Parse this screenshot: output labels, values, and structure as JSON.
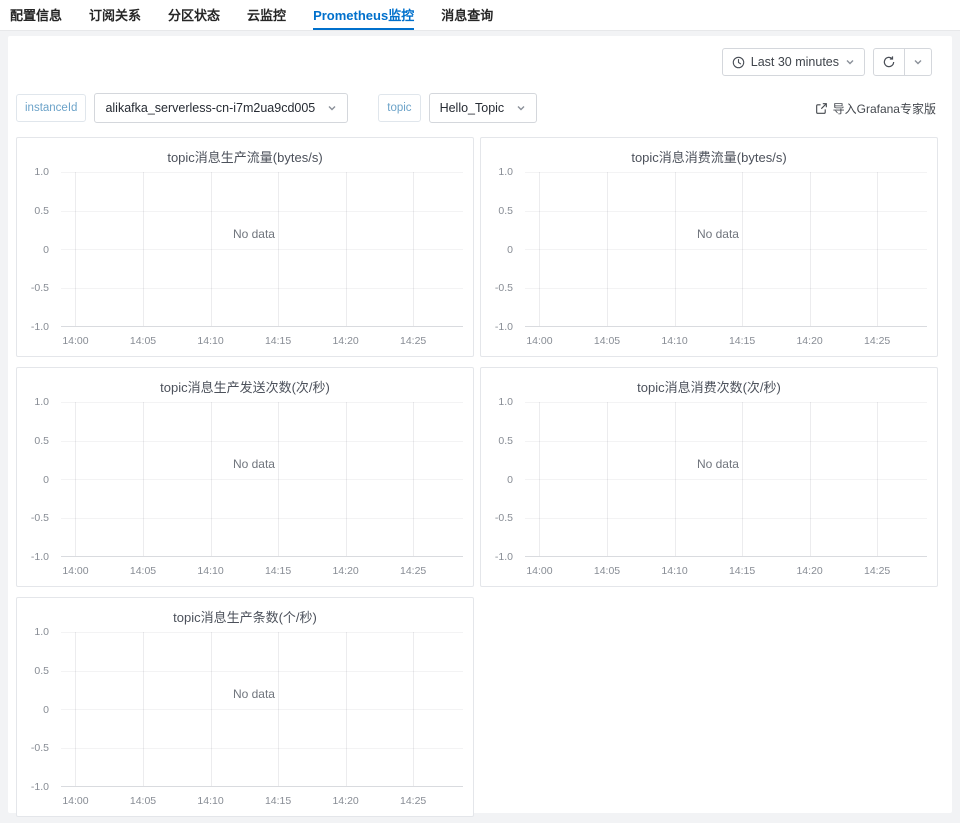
{
  "tabs": {
    "items": [
      {
        "label": "配置信息",
        "active": false
      },
      {
        "label": "订阅关系",
        "active": false
      },
      {
        "label": "分区状态",
        "active": false
      },
      {
        "label": "云监控",
        "active": false
      },
      {
        "label": "Prometheus监控",
        "active": true
      },
      {
        "label": "消息查询",
        "active": false
      }
    ]
  },
  "toolbar": {
    "time_range_label": "Last 30 minutes",
    "clock_icon": "clock-icon",
    "refresh_icon": "refresh-icon",
    "chevron_icon": "chevron-down-icon"
  },
  "filters": {
    "instance_label": "instanceId",
    "instance_value": "alikafka_serverless-cn-i7m2ua9cd005",
    "topic_label": "topic",
    "topic_value": "Hello_Topic",
    "grafana_link_label": "导入Grafana专家版",
    "external_link_icon": "external-link-icon"
  },
  "colors": {
    "accent": "#0070cc",
    "chip_text": "#6ca3c9",
    "no_data_text": "#70757d",
    "panel_border": "#e4e6ea"
  },
  "chart_data": [
    {
      "type": "line",
      "title": "topic消息生产流量(bytes/s)",
      "x": [
        "14:00",
        "14:05",
        "14:10",
        "14:15",
        "14:20",
        "14:25"
      ],
      "y_ticks": [
        "1.0",
        "0.5",
        "0",
        "-0.5",
        "-1.0"
      ],
      "ylim": [
        -1.0,
        1.0
      ],
      "series": [],
      "no_data": "No data",
      "grid": true,
      "legend": "none"
    },
    {
      "type": "line",
      "title": "topic消息消费流量(bytes/s)",
      "x": [
        "14:00",
        "14:05",
        "14:10",
        "14:15",
        "14:20",
        "14:25"
      ],
      "y_ticks": [
        "1.0",
        "0.5",
        "0",
        "-0.5",
        "-1.0"
      ],
      "ylim": [
        -1.0,
        1.0
      ],
      "series": [],
      "no_data": "No data",
      "grid": true,
      "legend": "none"
    },
    {
      "type": "line",
      "title": "topic消息生产发送次数(次/秒)",
      "x": [
        "14:00",
        "14:05",
        "14:10",
        "14:15",
        "14:20",
        "14:25"
      ],
      "y_ticks": [
        "1.0",
        "0.5",
        "0",
        "-0.5",
        "-1.0"
      ],
      "ylim": [
        -1.0,
        1.0
      ],
      "series": [],
      "no_data": "No data",
      "grid": true,
      "legend": "none"
    },
    {
      "type": "line",
      "title": "topic消息消费次数(次/秒)",
      "x": [
        "14:00",
        "14:05",
        "14:10",
        "14:15",
        "14:20",
        "14:25"
      ],
      "y_ticks": [
        "1.0",
        "0.5",
        "0",
        "-0.5",
        "-1.0"
      ],
      "ylim": [
        -1.0,
        1.0
      ],
      "series": [],
      "no_data": "No data",
      "grid": true,
      "legend": "none"
    },
    {
      "type": "line",
      "title": "topic消息生产条数(个/秒)",
      "x": [
        "14:00",
        "14:05",
        "14:10",
        "14:15",
        "14:20",
        "14:25"
      ],
      "y_ticks": [
        "1.0",
        "0.5",
        "0",
        "-0.5",
        "-1.0"
      ],
      "ylim": [
        -1.0,
        1.0
      ],
      "series": [],
      "no_data": "No data",
      "grid": true,
      "legend": "none"
    }
  ]
}
